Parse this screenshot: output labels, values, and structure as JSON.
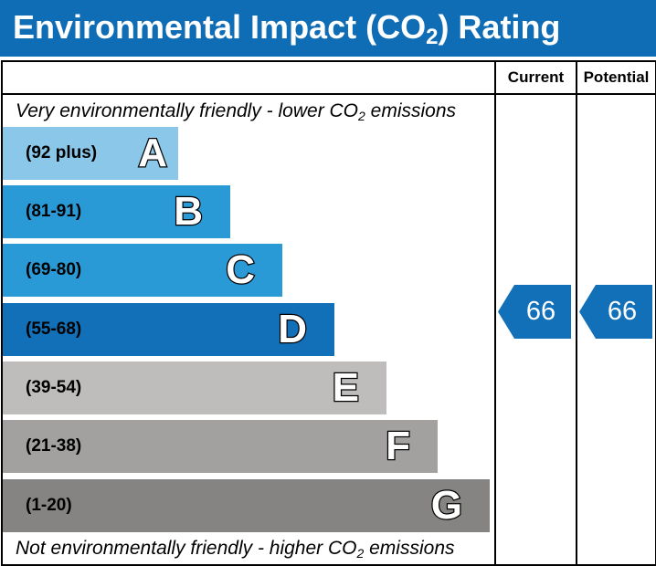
{
  "header": {
    "title_prefix": "Environmental Impact (CO",
    "title_sub": "2",
    "title_suffix": ") Rating",
    "background": "#0f6db6"
  },
  "columns": {
    "current": "Current",
    "potential": "Potential"
  },
  "captions": {
    "top_prefix": "Very environmentally friendly - lower CO",
    "top_sub": "2",
    "top_suffix": " emissions",
    "bottom_prefix": "Not environmentally friendly - higher CO",
    "bottom_sub": "2",
    "bottom_suffix": " emissions"
  },
  "bands": [
    {
      "range": "(92 plus)",
      "letter": "A",
      "color": "#8ac7e8"
    },
    {
      "range": "(81-91)",
      "letter": "B",
      "color": "#2a9ad6"
    },
    {
      "range": "(69-80)",
      "letter": "C",
      "color": "#2a9ad6"
    },
    {
      "range": "(55-68)",
      "letter": "D",
      "color": "#1270b8"
    },
    {
      "range": "(39-54)",
      "letter": "E",
      "color": "#bfbdbb"
    },
    {
      "range": "(21-38)",
      "letter": "F",
      "color": "#a2a1a0"
    },
    {
      "range": "(1-20)",
      "letter": "G",
      "color": "#858483"
    }
  ],
  "ratings": {
    "current": {
      "value": "66",
      "band": "D",
      "color": "#1270b8"
    },
    "potential": {
      "value": "66",
      "band": "D",
      "color": "#1270b8"
    }
  }
}
